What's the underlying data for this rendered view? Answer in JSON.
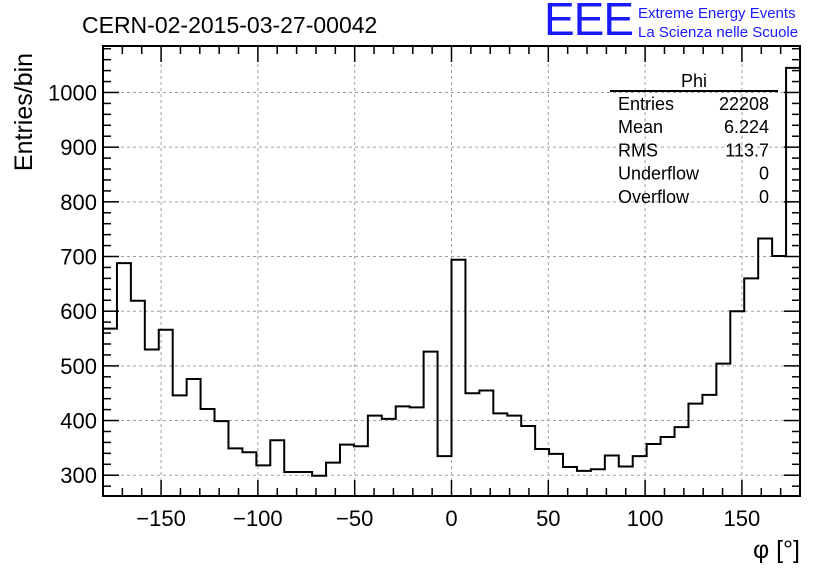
{
  "title": "CERN-02-2015-03-27-00042",
  "logo": {
    "mark": "EEE",
    "line1": "Extreme Energy Events",
    "line2": "La Scienza nelle Scuole",
    "color": "#1a1aff"
  },
  "chart_data": {
    "type": "bar",
    "histogram": true,
    "title": "CERN-02-2015-03-27-00042",
    "xlabel": "φ [°]",
    "ylabel": "Entries/bin",
    "xlim": [
      -180,
      180
    ],
    "ylim": [
      262,
      1085
    ],
    "grid": true,
    "x_ticks": [
      -150,
      -100,
      -50,
      0,
      50,
      100,
      150
    ],
    "y_ticks": [
      300,
      400,
      500,
      600,
      700,
      800,
      900,
      1000
    ],
    "bin_width": 7.2,
    "values": [
      568,
      688,
      619,
      530,
      566,
      446,
      476,
      421,
      399,
      349,
      342,
      318,
      364,
      306,
      306,
      299,
      323,
      356,
      353,
      409,
      403,
      426,
      424,
      526,
      335,
      694,
      450,
      455,
      413,
      409,
      390,
      348,
      339,
      315,
      308,
      311,
      336,
      316,
      335,
      357,
      370,
      388,
      431,
      447,
      504,
      600,
      660,
      733,
      701,
      1045
    ],
    "stats": {
      "title": "Phi",
      "rows": [
        {
          "label": "Entries",
          "value": "22208"
        },
        {
          "label": "Mean",
          "value": "6.224"
        },
        {
          "label": "RMS",
          "value": "113.7"
        },
        {
          "label": "Underflow",
          "value": "0"
        },
        {
          "label": "Overflow",
          "value": "0"
        }
      ]
    },
    "line_color": "#000000",
    "grid_color": "#a0a0a0"
  }
}
